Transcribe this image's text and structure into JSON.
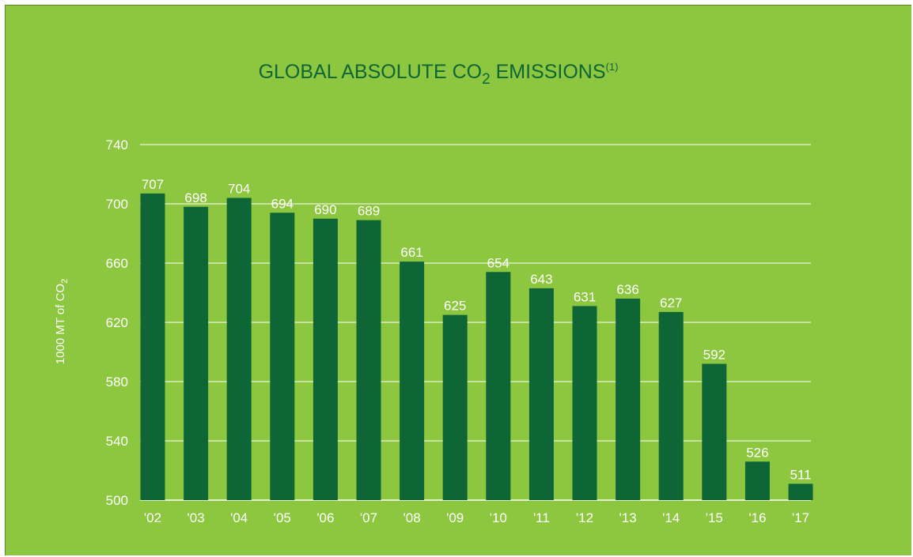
{
  "chart_data": {
    "type": "bar",
    "title": {
      "main": "GLOBAL ABSOLUTE CO",
      "subscript": "2",
      "rest": " EMISSIONS",
      "superscript": "(1)"
    },
    "ylabel": {
      "main": "1000 MT of CO",
      "subscript": "2"
    },
    "xlabel": "",
    "categories": [
      "'02",
      "'03",
      "'04",
      "'05",
      "'06",
      "'07",
      "'08",
      "'09",
      "'10",
      "'11",
      "'12",
      "'13",
      "'14",
      "'15",
      "'16",
      "'17"
    ],
    "values": [
      707,
      698,
      704,
      694,
      690,
      689,
      661,
      625,
      654,
      643,
      631,
      636,
      627,
      592,
      526,
      511
    ],
    "ylim": [
      500,
      740
    ],
    "yticks": [
      500,
      540,
      580,
      620,
      660,
      700,
      740
    ],
    "grid": true,
    "colors": {
      "background": "#8dc63f",
      "bar": "#0e6637",
      "title": "#0e6637",
      "gridline": "#ffffff",
      "text": "#ffffff"
    }
  }
}
